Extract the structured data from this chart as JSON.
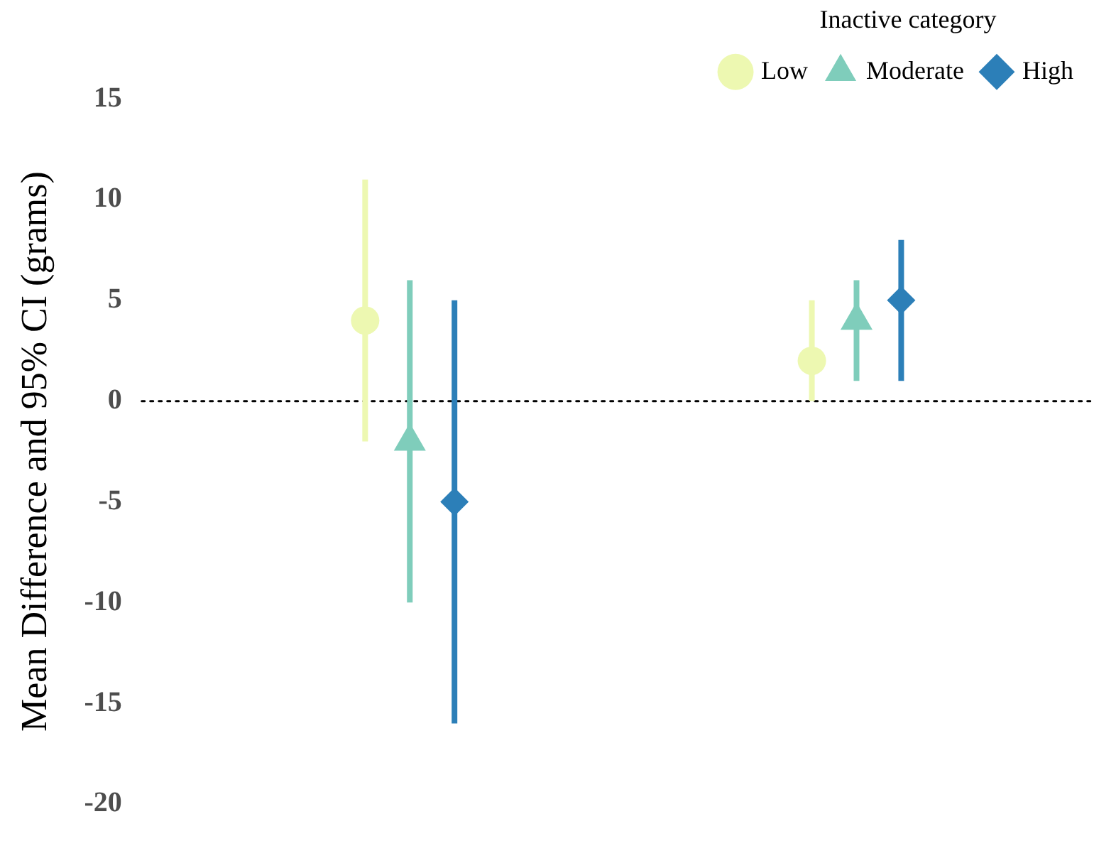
{
  "chart_data": {
    "type": "scatter",
    "ylabel": "Mean Difference and 95% CI (grams)",
    "legend_title": "Inactive category",
    "categories": [
      null,
      null
    ],
    "series": [
      {
        "name": "Low",
        "color": "#edf8b1",
        "marker": "circle",
        "values": [
          4,
          2
        ],
        "errors": [
          [
            -2,
            11
          ],
          [
            0,
            5
          ]
        ]
      },
      {
        "name": "Moderate",
        "color": "#7fcdbb",
        "marker": "triangle",
        "values": [
          -2,
          4
        ],
        "errors": [
          [
            -10,
            6
          ],
          [
            1,
            6
          ]
        ]
      },
      {
        "name": "High",
        "color": "#2c7fb8",
        "marker": "diamond",
        "values": [
          -5,
          5
        ],
        "errors": [
          [
            -16,
            5
          ],
          [
            1,
            8
          ]
        ]
      }
    ],
    "ylim": [
      -20,
      15
    ],
    "yticks": [
      -20,
      -15,
      -10,
      -5,
      0,
      5,
      10,
      15
    ],
    "tick_labels": "y",
    "grid": false,
    "legend": "top right",
    "ref_lines": [
      {
        "axis": "y",
        "value": 0,
        "color": "#000000",
        "line_style": "dotted"
      }
    ]
  }
}
